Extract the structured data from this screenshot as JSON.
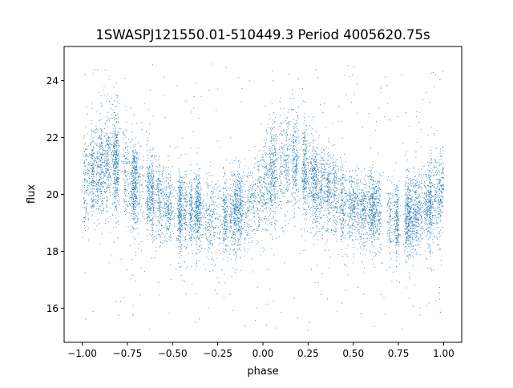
{
  "chart_data": {
    "type": "scatter",
    "title": "1SWASPJ121550.01-510449.3 Period 4005620.75s",
    "xlabel": "phase",
    "ylabel": "flux",
    "xlim": [
      -1.1,
      1.1
    ],
    "ylim": [
      14.8,
      25.2
    ],
    "xticks": [
      -1.0,
      -0.75,
      -0.5,
      -0.25,
      0.0,
      0.25,
      0.5,
      0.75,
      1.0
    ],
    "xtick_labels": [
      "−1.00",
      "−0.75",
      "−0.50",
      "−0.25",
      "0.00",
      "0.25",
      "0.50",
      "0.75",
      "1.00"
    ],
    "yticks": [
      16,
      18,
      20,
      22,
      24
    ],
    "ytick_labels": [
      "16",
      "18",
      "20",
      "22",
      "24"
    ],
    "grid": false,
    "legend": "none",
    "series_color": "#1f77b4",
    "profile": {
      "phase": [
        0.0,
        0.05,
        0.1,
        0.15,
        0.2,
        0.25,
        0.3,
        0.35,
        0.4,
        0.45,
        0.5,
        0.55,
        0.6,
        0.65,
        0.7,
        0.75,
        0.8,
        0.85,
        0.9,
        0.95,
        1.0
      ],
      "flux_center": [
        20.2,
        20.7,
        21.0,
        21.2,
        21.1,
        20.6,
        20.3,
        20.1,
        19.9,
        19.7,
        19.5,
        19.4,
        19.5,
        19.4,
        19.2,
        19.1,
        19.2,
        19.4,
        19.5,
        19.8,
        20.2
      ],
      "flux_spread": [
        0.8,
        0.9,
        0.9,
        0.9,
        0.9,
        0.85,
        0.8,
        0.75,
        0.75,
        0.7,
        0.7,
        0.7,
        0.7,
        0.7,
        0.7,
        0.7,
        0.7,
        0.75,
        0.7,
        0.8,
        0.8
      ]
    },
    "outlier_range": [
      15.2,
      24.6
    ]
  }
}
